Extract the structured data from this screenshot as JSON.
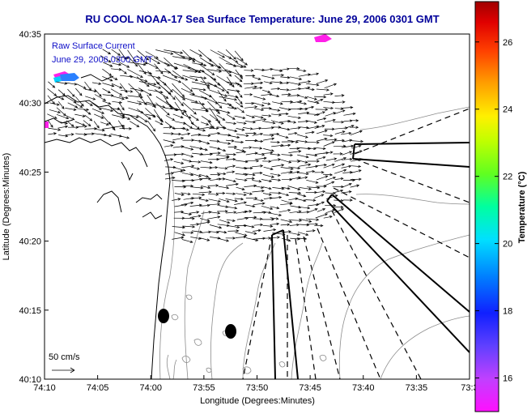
{
  "chart_data": {
    "type": "map",
    "title": "RU COOL  NOAA-17  Sea Surface Temperature:  June 29, 2006 0301 GMT",
    "xlabel": "Longitude (Degrees:Minutes)",
    "ylabel": "Latitude (Degrees:Minutes)",
    "x_ticks": [
      "74:10",
      "74:05",
      "74:00",
      "73:55",
      "73:50",
      "73:45",
      "73:40",
      "73:35",
      "73:3"
    ],
    "y_ticks": [
      "40:35",
      "40:30",
      "40:25",
      "40:20",
      "40:15",
      "40:10"
    ],
    "xlim_minutes_west": [
      10,
      30
    ],
    "ylim_minutes_north": [
      10,
      35
    ],
    "overlay_label_1": "Raw Surface Current",
    "overlay_label_2": "June 29, 2006 0300 GMT",
    "scale_label": "50 cm/s",
    "colorbar": {
      "label": "Temperature (°C)",
      "ticks": [
        "26",
        "24",
        "22",
        "20",
        "18",
        "16"
      ],
      "tick_values": [
        26,
        24,
        22,
        20,
        18,
        16
      ],
      "range": [
        15,
        27.2
      ]
    },
    "colors": {
      "title": "#00009a",
      "land": "#ffffff",
      "sst_patch": "#ff20e8",
      "current_arrow": "#000000"
    }
  }
}
